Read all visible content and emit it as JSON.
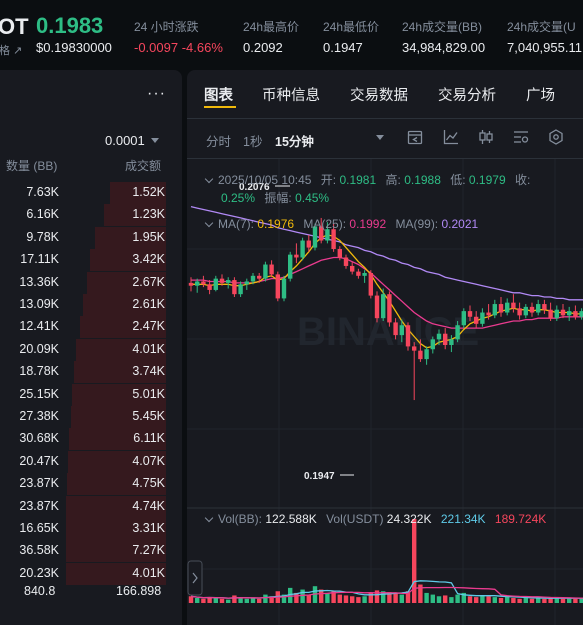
{
  "header": {
    "symbol": "OT",
    "last_price": "0.1983",
    "price_label": "格",
    "price_usd": "$0.19830000",
    "stats": [
      {
        "label": "24 小时涨跌",
        "value": "-0.0097 -4.66%"
      },
      {
        "label": "24h最高价",
        "value": "0.2092"
      },
      {
        "label": "24h最低价",
        "value": "0.1947"
      },
      {
        "label": "24h成交量(BB)",
        "value": "34,984,829.00"
      },
      {
        "label": "24h成交量(U",
        "value": "7,040,955.11"
      }
    ]
  },
  "orderbook": {
    "more": "···",
    "tick_size": "0.0001",
    "col_amount": "数量 (BB)",
    "col_total": "成交额",
    "rows": [
      {
        "amount": "7.63K",
        "total": "1.52K",
        "depth": 0.56
      },
      {
        "amount": "6.16K",
        "total": "1.23K",
        "depth": 0.62
      },
      {
        "amount": "9.78K",
        "total": "1.95K",
        "depth": 0.71
      },
      {
        "amount": "17.11K",
        "total": "3.42K",
        "depth": 0.76
      },
      {
        "amount": "13.36K",
        "total": "2.67K",
        "depth": 0.79
      },
      {
        "amount": "13.09K",
        "total": "2.61K",
        "depth": 0.83
      },
      {
        "amount": "12.41K",
        "total": "2.47K",
        "depth": 0.86
      },
      {
        "amount": "20.09K",
        "total": "4.01K",
        "depth": 0.9
      },
      {
        "amount": "18.78K",
        "total": "3.74K",
        "depth": 0.92
      },
      {
        "amount": "25.15K",
        "total": "5.01K",
        "depth": 0.94
      },
      {
        "amount": "27.38K",
        "total": "5.45K",
        "depth": 0.95
      },
      {
        "amount": "30.68K",
        "total": "6.11K",
        "depth": 0.97
      },
      {
        "amount": "20.47K",
        "total": "4.07K",
        "depth": 0.98
      },
      {
        "amount": "23.87K",
        "total": "4.75K",
        "depth": 0.99
      },
      {
        "amount": "23.87K",
        "total": "4.74K",
        "depth": 1.0
      },
      {
        "amount": "16.65K",
        "total": "3.31K",
        "depth": 1.0
      },
      {
        "amount": "36.58K",
        "total": "7.27K",
        "depth": 1.0
      },
      {
        "amount": "20.23K",
        "total": "4.01K",
        "depth": 1.0
      }
    ],
    "sum_amount": "840.8",
    "sum_total": "166.898"
  },
  "tabs": [
    "图表",
    "币种信息",
    "交易数据",
    "交易分析",
    "广场"
  ],
  "toolbar": {
    "intervals": [
      "分时",
      "1秒",
      "15分钟"
    ],
    "active_interval": "15分钟"
  },
  "ohlc": {
    "date": "2025/10/05 10:45",
    "open_label": "开:",
    "open": "0.1981",
    "high_label": "高:",
    "high": "0.1988",
    "low_label": "低:",
    "low": "0.1979",
    "close_label": "收:",
    "change": "0.25%",
    "amp_label": "振幅:",
    "amp": "0.45%"
  },
  "ma": {
    "ma7_label": "MA(7):",
    "ma7": "0.1976",
    "ma25_label": "MA(25):",
    "ma25": "0.1992",
    "ma99_label": "MA(99):",
    "ma99": "0.2021"
  },
  "vol": {
    "bb_label": "Vol(BB):",
    "bb": "122.588K",
    "usdt_label": "Vol(USDT)",
    "usdt": "24.322K",
    "ma1": "221.34K",
    "ma2": "189.724K"
  },
  "chart_labels": {
    "high_mark": "0.2076",
    "low_mark": "0.1947",
    "watermark": "BINANCE"
  },
  "colors": {
    "up": "#2ebd85",
    "down": "#f6465d",
    "accent": "#f0b90b",
    "ma25": "#ea3b8f",
    "ma99": "#b189f5"
  },
  "chart_data": {
    "type": "candlestick",
    "ylim": [
      0.1935,
      0.2105
    ],
    "candles": [
      [
        0.203,
        0.2034,
        0.2024,
        0.2028
      ],
      [
        0.2028,
        0.2033,
        0.2023,
        0.2031
      ],
      [
        0.2031,
        0.2035,
        0.2027,
        0.2029
      ],
      [
        0.2029,
        0.2032,
        0.2022,
        0.2025
      ],
      [
        0.2025,
        0.2035,
        0.2024,
        0.2033
      ],
      [
        0.2033,
        0.2036,
        0.2028,
        0.203
      ],
      [
        0.203,
        0.2034,
        0.2026,
        0.2032
      ],
      [
        0.2032,
        0.2034,
        0.202,
        0.2022
      ],
      [
        0.2022,
        0.2031,
        0.202,
        0.2029
      ],
      [
        0.2029,
        0.2033,
        0.2025,
        0.2031
      ],
      [
        0.2031,
        0.2037,
        0.2029,
        0.2035
      ],
      [
        0.2035,
        0.2037,
        0.203,
        0.2033
      ],
      [
        0.2033,
        0.2045,
        0.2031,
        0.2043
      ],
      [
        0.2043,
        0.2046,
        0.2034,
        0.2036
      ],
      [
        0.2036,
        0.2038,
        0.2017,
        0.2019
      ],
      [
        0.2019,
        0.2035,
        0.2017,
        0.2033
      ],
      [
        0.2033,
        0.2052,
        0.2031,
        0.205
      ],
      [
        0.205,
        0.2058,
        0.2044,
        0.2048
      ],
      [
        0.2048,
        0.2062,
        0.2046,
        0.206
      ],
      [
        0.206,
        0.2064,
        0.2052,
        0.2055
      ],
      [
        0.2055,
        0.2072,
        0.2053,
        0.207
      ],
      [
        0.207,
        0.2076,
        0.2058,
        0.206
      ],
      [
        0.206,
        0.2073,
        0.2058,
        0.2068
      ],
      [
        0.2068,
        0.2072,
        0.2052,
        0.2054
      ],
      [
        0.2054,
        0.2056,
        0.2046,
        0.2048
      ],
      [
        0.2048,
        0.205,
        0.204,
        0.2042
      ],
      [
        0.2042,
        0.2045,
        0.2036,
        0.2038
      ],
      [
        0.2038,
        0.204,
        0.2033,
        0.2035
      ],
      [
        0.2035,
        0.2039,
        0.203,
        0.2037
      ],
      [
        0.2037,
        0.2039,
        0.2019,
        0.2021
      ],
      [
        0.2021,
        0.2024,
        0.2002,
        0.2005
      ],
      [
        0.2005,
        0.2026,
        0.2003,
        0.2022
      ],
      [
        0.2022,
        0.2024,
        0.1999,
        0.2002
      ],
      [
        0.2002,
        0.2005,
        0.199,
        0.1993
      ],
      [
        0.1993,
        0.2004,
        0.1988,
        0.2
      ],
      [
        0.2,
        0.2002,
        0.1982,
        0.1985
      ],
      [
        0.1985,
        0.1988,
        0.1947,
        0.1982
      ],
      [
        0.1982,
        0.199,
        0.1974,
        0.1976
      ],
      [
        0.1976,
        0.1985,
        0.1972,
        0.1983
      ],
      [
        0.1983,
        0.1992,
        0.198,
        0.199
      ],
      [
        0.199,
        0.1997,
        0.1986,
        0.1994
      ],
      [
        0.1994,
        0.1998,
        0.1983,
        0.1986
      ],
      [
        0.1986,
        0.1993,
        0.1981,
        0.199
      ],
      [
        0.199,
        0.2003,
        0.1988,
        0.2
      ],
      [
        0.2,
        0.2012,
        0.1998,
        0.201
      ],
      [
        0.201,
        0.2014,
        0.2003,
        0.2006
      ],
      [
        0.2006,
        0.201,
        0.1998,
        0.2001
      ],
      [
        0.2001,
        0.2012,
        0.1999,
        0.2009
      ],
      [
        0.2009,
        0.2015,
        0.2004,
        0.2007
      ],
      [
        0.2007,
        0.2018,
        0.2005,
        0.2015
      ],
      [
        0.2015,
        0.202,
        0.2006,
        0.2009
      ],
      [
        0.2009,
        0.2019,
        0.2007,
        0.2016
      ],
      [
        0.2016,
        0.2022,
        0.2009,
        0.2012
      ],
      [
        0.2012,
        0.2016,
        0.2004,
        0.2007
      ],
      [
        0.2007,
        0.2015,
        0.2005,
        0.2013
      ],
      [
        0.2013,
        0.2016,
        0.2006,
        0.2009
      ],
      [
        0.2009,
        0.2018,
        0.2007,
        0.2015
      ],
      [
        0.2015,
        0.2018,
        0.2008,
        0.2011
      ],
      [
        0.2011,
        0.2016,
        0.2003,
        0.2005
      ],
      [
        0.2005,
        0.2014,
        0.2003,
        0.2011
      ],
      [
        0.2011,
        0.2015,
        0.2005,
        0.2007
      ],
      [
        0.2007,
        0.2013,
        0.2003,
        0.201
      ],
      [
        0.201,
        0.2014,
        0.2004,
        0.2006
      ],
      [
        0.2006,
        0.2012,
        0.2004,
        0.201
      ],
      [
        0.201,
        0.2013,
        0.2005,
        0.2008
      ]
    ],
    "ma7": [
      0.2029,
      0.2029,
      0.2029,
      0.2028,
      0.2029,
      0.2029,
      0.2029,
      0.2028,
      0.2028,
      0.2029,
      0.203,
      0.2031,
      0.2034,
      0.2035,
      0.2032,
      0.2033,
      0.2038,
      0.2042,
      0.2047,
      0.2052,
      0.2058,
      0.2062,
      0.2064,
      0.2063,
      0.206,
      0.2055,
      0.205,
      0.2045,
      0.2041,
      0.2036,
      0.2029,
      0.2023,
      0.2017,
      0.201,
      0.2003,
      0.1997,
      0.1992,
      0.1987,
      0.1984,
      0.1985,
      0.1988,
      0.1989,
      0.199,
      0.1992,
      0.1997,
      0.2001,
      0.2003,
      0.2005,
      0.2006,
      0.2008,
      0.201,
      0.2011,
      0.2012,
      0.2011,
      0.2011,
      0.201,
      0.2011,
      0.2011,
      0.201,
      0.2009,
      0.2009,
      0.2009,
      0.2008,
      0.2008,
      0.2008
    ],
    "ma25": [
      0.2032,
      0.2032,
      0.2032,
      0.2031,
      0.2031,
      0.2031,
      0.2031,
      0.203,
      0.203,
      0.203,
      0.203,
      0.2031,
      0.2032,
      0.2033,
      0.2033,
      0.2034,
      0.2036,
      0.2038,
      0.204,
      0.2042,
      0.2044,
      0.2046,
      0.2047,
      0.2048,
      0.2048,
      0.2047,
      0.2045,
      0.2043,
      0.204,
      0.2037,
      0.2033,
      0.2029,
      0.2025,
      0.2021,
      0.2017,
      0.2013,
      0.2009,
      0.2006,
      0.2003,
      0.2001,
      0.2,
      0.1999,
      0.1998,
      0.1998,
      0.1998,
      0.1998,
      0.1998,
      0.1998,
      0.1999,
      0.2,
      0.2001,
      0.2002,
      0.2003,
      0.2003,
      0.2004,
      0.2004,
      0.2005,
      0.2005,
      0.2005,
      0.2005,
      0.2006,
      0.2006,
      0.2006,
      0.2006,
      0.2006
    ],
    "ma99": [
      0.2084,
      0.2083,
      0.2082,
      0.2081,
      0.208,
      0.2079,
      0.2078,
      0.2077,
      0.2076,
      0.2075,
      0.2074,
      0.2073,
      0.2072,
      0.2071,
      0.2069,
      0.2068,
      0.2067,
      0.2066,
      0.2065,
      0.2064,
      0.2063,
      0.2062,
      0.2061,
      0.206,
      0.2059,
      0.2057,
      0.2056,
      0.2055,
      0.2053,
      0.2052,
      0.205,
      0.2049,
      0.2047,
      0.2046,
      0.2044,
      0.2043,
      0.2041,
      0.204,
      0.2038,
      0.2037,
      0.2036,
      0.2034,
      0.2033,
      0.2032,
      0.2031,
      0.203,
      0.2029,
      0.2028,
      0.2027,
      0.2026,
      0.2025,
      0.2024,
      0.2023,
      0.2023,
      0.2022,
      0.2021,
      0.2021,
      0.202,
      0.202,
      0.2019,
      0.2019,
      0.2018,
      0.2018,
      0.2018,
      0.2018
    ],
    "volume": [
      0.08,
      0.06,
      0.05,
      0.07,
      0.06,
      0.05,
      0.04,
      0.09,
      0.07,
      0.05,
      0.06,
      0.05,
      0.1,
      0.08,
      0.14,
      0.1,
      0.18,
      0.12,
      0.16,
      0.1,
      0.2,
      0.16,
      0.12,
      0.14,
      0.1,
      0.09,
      0.08,
      0.07,
      0.08,
      0.12,
      0.15,
      0.14,
      0.13,
      0.12,
      0.1,
      0.14,
      1.0,
      0.22,
      0.12,
      0.1,
      0.08,
      0.09,
      0.07,
      0.1,
      0.12,
      0.08,
      0.07,
      0.09,
      0.08,
      0.07,
      0.06,
      0.08,
      0.06,
      0.05,
      0.06,
      0.05,
      0.06,
      0.05,
      0.07,
      0.06,
      0.05,
      0.06,
      0.05,
      0.06,
      0.04
    ]
  }
}
